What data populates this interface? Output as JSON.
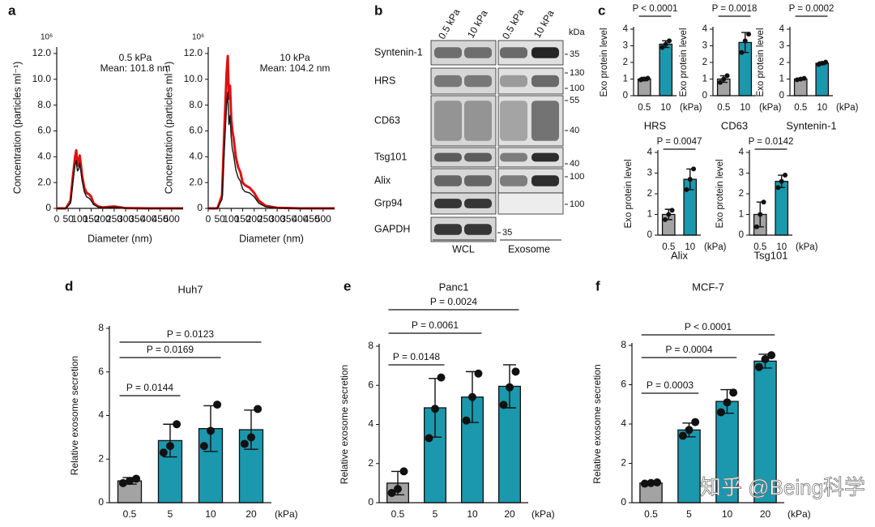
{
  "panel_labels": [
    "a",
    "b",
    "c",
    "d",
    "e",
    "f"
  ],
  "watermark": "知乎 @Being科学",
  "blot": {
    "lanes": [
      "0.5 kPa",
      "10 kPa",
      "0.5 kPa",
      "10 kPa"
    ],
    "unit": "kDa",
    "groups": [
      "WCL",
      "Exosome"
    ],
    "rows": [
      {
        "name": "Syntenin-1",
        "markers": [
          "35"
        ]
      },
      {
        "name": "HRS",
        "markers": [
          "130",
          "100"
        ]
      },
      {
        "name": "CD63",
        "markers": [
          "55",
          "40"
        ]
      },
      {
        "name": "Tsg101",
        "markers": [
          "40"
        ]
      },
      {
        "name": "Alix",
        "markers": [
          "100"
        ]
      },
      {
        "name": "Grp94",
        "markers": [
          "100"
        ]
      },
      {
        "name": "GAPDH",
        "markers": [
          "35"
        ]
      }
    ]
  },
  "chart_data": [
    {
      "type": "line",
      "title": "0.5 kPa",
      "subtitle": "Mean: 101.8 nm",
      "multiplier": "10⁶",
      "xlabel": "Diameter (nm)",
      "ylabel": "Concentration (particles ml⁻¹)",
      "x": [
        0,
        40,
        60,
        70,
        80,
        85,
        90,
        95,
        100,
        105,
        110,
        120,
        130,
        140,
        150,
        160,
        180,
        200,
        250,
        300,
        400,
        500,
        550
      ],
      "series": [
        {
          "color": "#e01010",
          "values": [
            0,
            0,
            0.6,
            2.4,
            4.0,
            4.5,
            3.3,
            3.6,
            4.1,
            3.4,
            2.6,
            1.6,
            1.2,
            1.1,
            0.9,
            0.4,
            0.15,
            0.08,
            0.15,
            0.02,
            0,
            0,
            0
          ]
        },
        {
          "color": "#111111",
          "values": [
            0,
            0,
            0.4,
            2.0,
            3.4,
            3.7,
            2.9,
            3.0,
            3.5,
            2.9,
            2.2,
            1.3,
            0.9,
            0.8,
            0.6,
            0.3,
            0.1,
            0.05,
            0.1,
            0.01,
            0,
            0,
            0
          ]
        }
      ],
      "xlim": [
        0,
        550
      ],
      "xticks": [
        0,
        50,
        100,
        150,
        200,
        250,
        300,
        350,
        400,
        450,
        500
      ],
      "ylim": [
        0,
        12.5
      ],
      "yticks": [
        0,
        {
          "value": 2,
          "label": "2.0"
        },
        {
          "value": 4,
          "label": "4.0"
        },
        {
          "value": 6,
          "label": "6.0"
        },
        {
          "value": 8,
          "label": "8.0"
        },
        {
          "value": 10,
          "label": "10.0"
        },
        {
          "value": 12,
          "label": "12.0"
        }
      ]
    },
    {
      "type": "line",
      "title": "10 kPa",
      "subtitle": "Mean: 104.2 nm",
      "multiplier": "10⁶",
      "xlabel": "Diameter (nm)",
      "ylabel": "Concentration (particles ml⁻¹)",
      "x": [
        0,
        40,
        60,
        70,
        80,
        85,
        90,
        95,
        100,
        105,
        110,
        120,
        130,
        140,
        150,
        160,
        180,
        200,
        220,
        250,
        300,
        400,
        500,
        550
      ],
      "series": [
        {
          "color": "#e01010",
          "values": [
            0,
            0,
            1.0,
            6.0,
            10.5,
            11.8,
            8.5,
            9.5,
            7.0,
            6.0,
            5.5,
            4.0,
            3.2,
            2.8,
            2.0,
            1.8,
            1.6,
            1.2,
            0.6,
            0.2,
            0.05,
            0,
            0,
            0
          ]
        },
        {
          "color": "#111111",
          "values": [
            0,
            0,
            0.7,
            4.5,
            8.0,
            9.0,
            6.5,
            7.2,
            5.5,
            4.6,
            4.2,
            3.0,
            2.4,
            2.1,
            1.5,
            1.3,
            1.2,
            0.9,
            0.4,
            0.12,
            0.03,
            0,
            0,
            0
          ]
        }
      ],
      "xlim": [
        0,
        550
      ],
      "xticks": [
        0,
        50,
        100,
        150,
        200,
        250,
        300,
        350,
        400,
        450,
        500
      ],
      "ylim": [
        0,
        12.5
      ],
      "yticks": [
        0,
        {
          "value": 2,
          "label": "2.0"
        },
        {
          "value": 4,
          "label": "4.0"
        },
        {
          "value": 6,
          "label": "6.0"
        },
        {
          "value": 8,
          "label": "8.0"
        },
        {
          "value": 10,
          "label": "10.0"
        },
        {
          "value": 12,
          "label": "12.0"
        }
      ]
    },
    {
      "type": "bar",
      "title": "HRS",
      "ylabel": "Exo protein level",
      "x_unit": "(kPa)",
      "categories": [
        "0.5",
        "10"
      ],
      "values": [
        1.0,
        3.1
      ],
      "errors": [
        0.1,
        0.2
      ],
      "points": [
        [
          0.95,
          1.0,
          1.05
        ],
        [
          2.9,
          3.1,
          3.3
        ]
      ],
      "colors": [
        "#a3a3a3",
        "#1b98ad"
      ],
      "ylim": [
        0,
        4
      ],
      "yticks": [
        0,
        1,
        2,
        3,
        4
      ],
      "annotations": [
        {
          "text": "P < 0.0001",
          "between": [
            "0.5",
            "10"
          ]
        }
      ]
    },
    {
      "type": "bar",
      "title": "CD63",
      "ylabel": "Exo protein level",
      "x_unit": "(kPa)",
      "categories": [
        "0.5",
        "10"
      ],
      "values": [
        1.0,
        3.2
      ],
      "errors": [
        0.2,
        0.6
      ],
      "points": [
        [
          0.8,
          1.0,
          1.2
        ],
        [
          2.6,
          3.3,
          3.7
        ]
      ],
      "colors": [
        "#a3a3a3",
        "#1b98ad"
      ],
      "ylim": [
        0,
        4
      ],
      "yticks": [
        0,
        1,
        2,
        3,
        4
      ],
      "annotations": [
        {
          "text": "P = 0.0018",
          "between": [
            "0.5",
            "10"
          ]
        }
      ]
    },
    {
      "type": "bar",
      "title": "Syntenin-1",
      "ylabel": "Exo protein level",
      "x_unit": "(kPa)",
      "categories": [
        "0.5",
        "10"
      ],
      "values": [
        1.0,
        1.95
      ],
      "errors": [
        0.05,
        0.08
      ],
      "points": [
        [
          0.96,
          1.0,
          1.04
        ],
        [
          1.88,
          1.95,
          2.02
        ]
      ],
      "colors": [
        "#a3a3a3",
        "#1b98ad"
      ],
      "ylim": [
        0,
        4
      ],
      "yticks": [
        0,
        1,
        2,
        3,
        4
      ],
      "annotations": [
        {
          "text": "P = 0.0002",
          "between": [
            "0.5",
            "10"
          ]
        }
      ]
    },
    {
      "type": "bar",
      "title": "Alix",
      "ylabel": "Exo protein level",
      "x_unit": "(kPa)",
      "categories": [
        "0.5",
        "10"
      ],
      "values": [
        1.0,
        2.7
      ],
      "errors": [
        0.25,
        0.5
      ],
      "points": [
        [
          0.75,
          1.0,
          1.2
        ],
        [
          2.2,
          2.7,
          3.2
        ]
      ],
      "colors": [
        "#a3a3a3",
        "#1b98ad"
      ],
      "ylim": [
        0,
        4
      ],
      "yticks": [
        0,
        1,
        2,
        3,
        4
      ],
      "annotations": [
        {
          "text": "P = 0.0047",
          "between": [
            "0.5",
            "10"
          ]
        }
      ]
    },
    {
      "type": "bar",
      "title": "Tsg101",
      "ylabel": "Exo protein level",
      "x_unit": "(kPa)",
      "categories": [
        "0.5",
        "10"
      ],
      "values": [
        1.0,
        2.6
      ],
      "errors": [
        0.6,
        0.3
      ],
      "points": [
        [
          0.4,
          1.0,
          1.6
        ],
        [
          2.3,
          2.6,
          2.9
        ]
      ],
      "colors": [
        "#a3a3a3",
        "#1b98ad"
      ],
      "ylim": [
        0,
        4
      ],
      "yticks": [
        0,
        1,
        2,
        3,
        4
      ],
      "annotations": [
        {
          "text": "P = 0.0142",
          "between": [
            "0.5",
            "10"
          ]
        }
      ]
    },
    {
      "type": "bar",
      "title": "Huh7",
      "ylabel": "Relative exosome secretion",
      "x_unit": "(kPa)",
      "categories": [
        "0.5",
        "5",
        "10",
        "20"
      ],
      "values": [
        1.0,
        2.85,
        3.4,
        3.35
      ],
      "errors": [
        0.15,
        0.75,
        1.05,
        0.9
      ],
      "points": [
        [
          0.9,
          1.0,
          1.1
        ],
        [
          2.3,
          2.6,
          3.6
        ],
        [
          2.6,
          3.3,
          4.5
        ],
        [
          2.7,
          3.0,
          4.3
        ]
      ],
      "colors": [
        "#a3a3a3",
        "#1b98ad",
        "#1b98ad",
        "#1b98ad"
      ],
      "ylim": [
        0,
        8
      ],
      "yticks": [
        0,
        2,
        4,
        6,
        8
      ],
      "annotations": [
        {
          "text": "P = 0.0144",
          "between": [
            "0.5",
            "5"
          ]
        },
        {
          "text": "P = 0.0169",
          "between": [
            "0.5",
            "10"
          ]
        },
        {
          "text": "P = 0.0123",
          "between": [
            "0.5",
            "20"
          ]
        }
      ]
    },
    {
      "type": "bar",
      "title": "Panc1",
      "ylabel": "Relative exosome secretion",
      "x_unit": "(kPa)",
      "categories": [
        "0.5",
        "5",
        "10",
        "20"
      ],
      "values": [
        1.0,
        4.85,
        5.4,
        5.95
      ],
      "errors": [
        0.6,
        1.5,
        1.3,
        1.1
      ],
      "points": [
        [
          0.5,
          0.7,
          1.6
        ],
        [
          3.3,
          4.8,
          6.4
        ],
        [
          4.2,
          5.4,
          6.6
        ],
        [
          5.0,
          5.9,
          6.7
        ]
      ],
      "colors": [
        "#a3a3a3",
        "#1b98ad",
        "#1b98ad",
        "#1b98ad"
      ],
      "ylim": [
        0,
        8
      ],
      "yticks": [
        0,
        2,
        4,
        6,
        8
      ],
      "annotations": [
        {
          "text": "P = 0.0148",
          "between": [
            "0.5",
            "5"
          ]
        },
        {
          "text": "P = 0.0061",
          "between": [
            "0.5",
            "10"
          ]
        },
        {
          "text": "P = 0.0024",
          "between": [
            "0.5",
            "20"
          ]
        }
      ]
    },
    {
      "type": "bar",
      "title": "MCF-7",
      "ylabel": "Relative exosome secretion",
      "x_unit": "(kPa)",
      "categories": [
        "0.5",
        "5",
        "10",
        "20"
      ],
      "values": [
        1.0,
        3.7,
        5.15,
        7.2
      ],
      "errors": [
        0.05,
        0.35,
        0.6,
        0.35
      ],
      "points": [
        [
          0.97,
          1.0,
          1.03
        ],
        [
          3.4,
          3.7,
          4.1
        ],
        [
          4.6,
          5.1,
          5.6
        ],
        [
          6.9,
          7.3,
          7.5
        ]
      ],
      "colors": [
        "#a3a3a3",
        "#1b98ad",
        "#1b98ad",
        "#1b98ad"
      ],
      "ylim": [
        0,
        8
      ],
      "yticks": [
        0,
        2,
        4,
        6,
        8
      ],
      "annotations": [
        {
          "text": "P = 0.0003",
          "between": [
            "0.5",
            "5"
          ]
        },
        {
          "text": "P = 0.0004",
          "between": [
            "0.5",
            "10"
          ]
        },
        {
          "text": "P < 0.0001",
          "between": [
            "0.5",
            "20"
          ]
        }
      ]
    }
  ]
}
